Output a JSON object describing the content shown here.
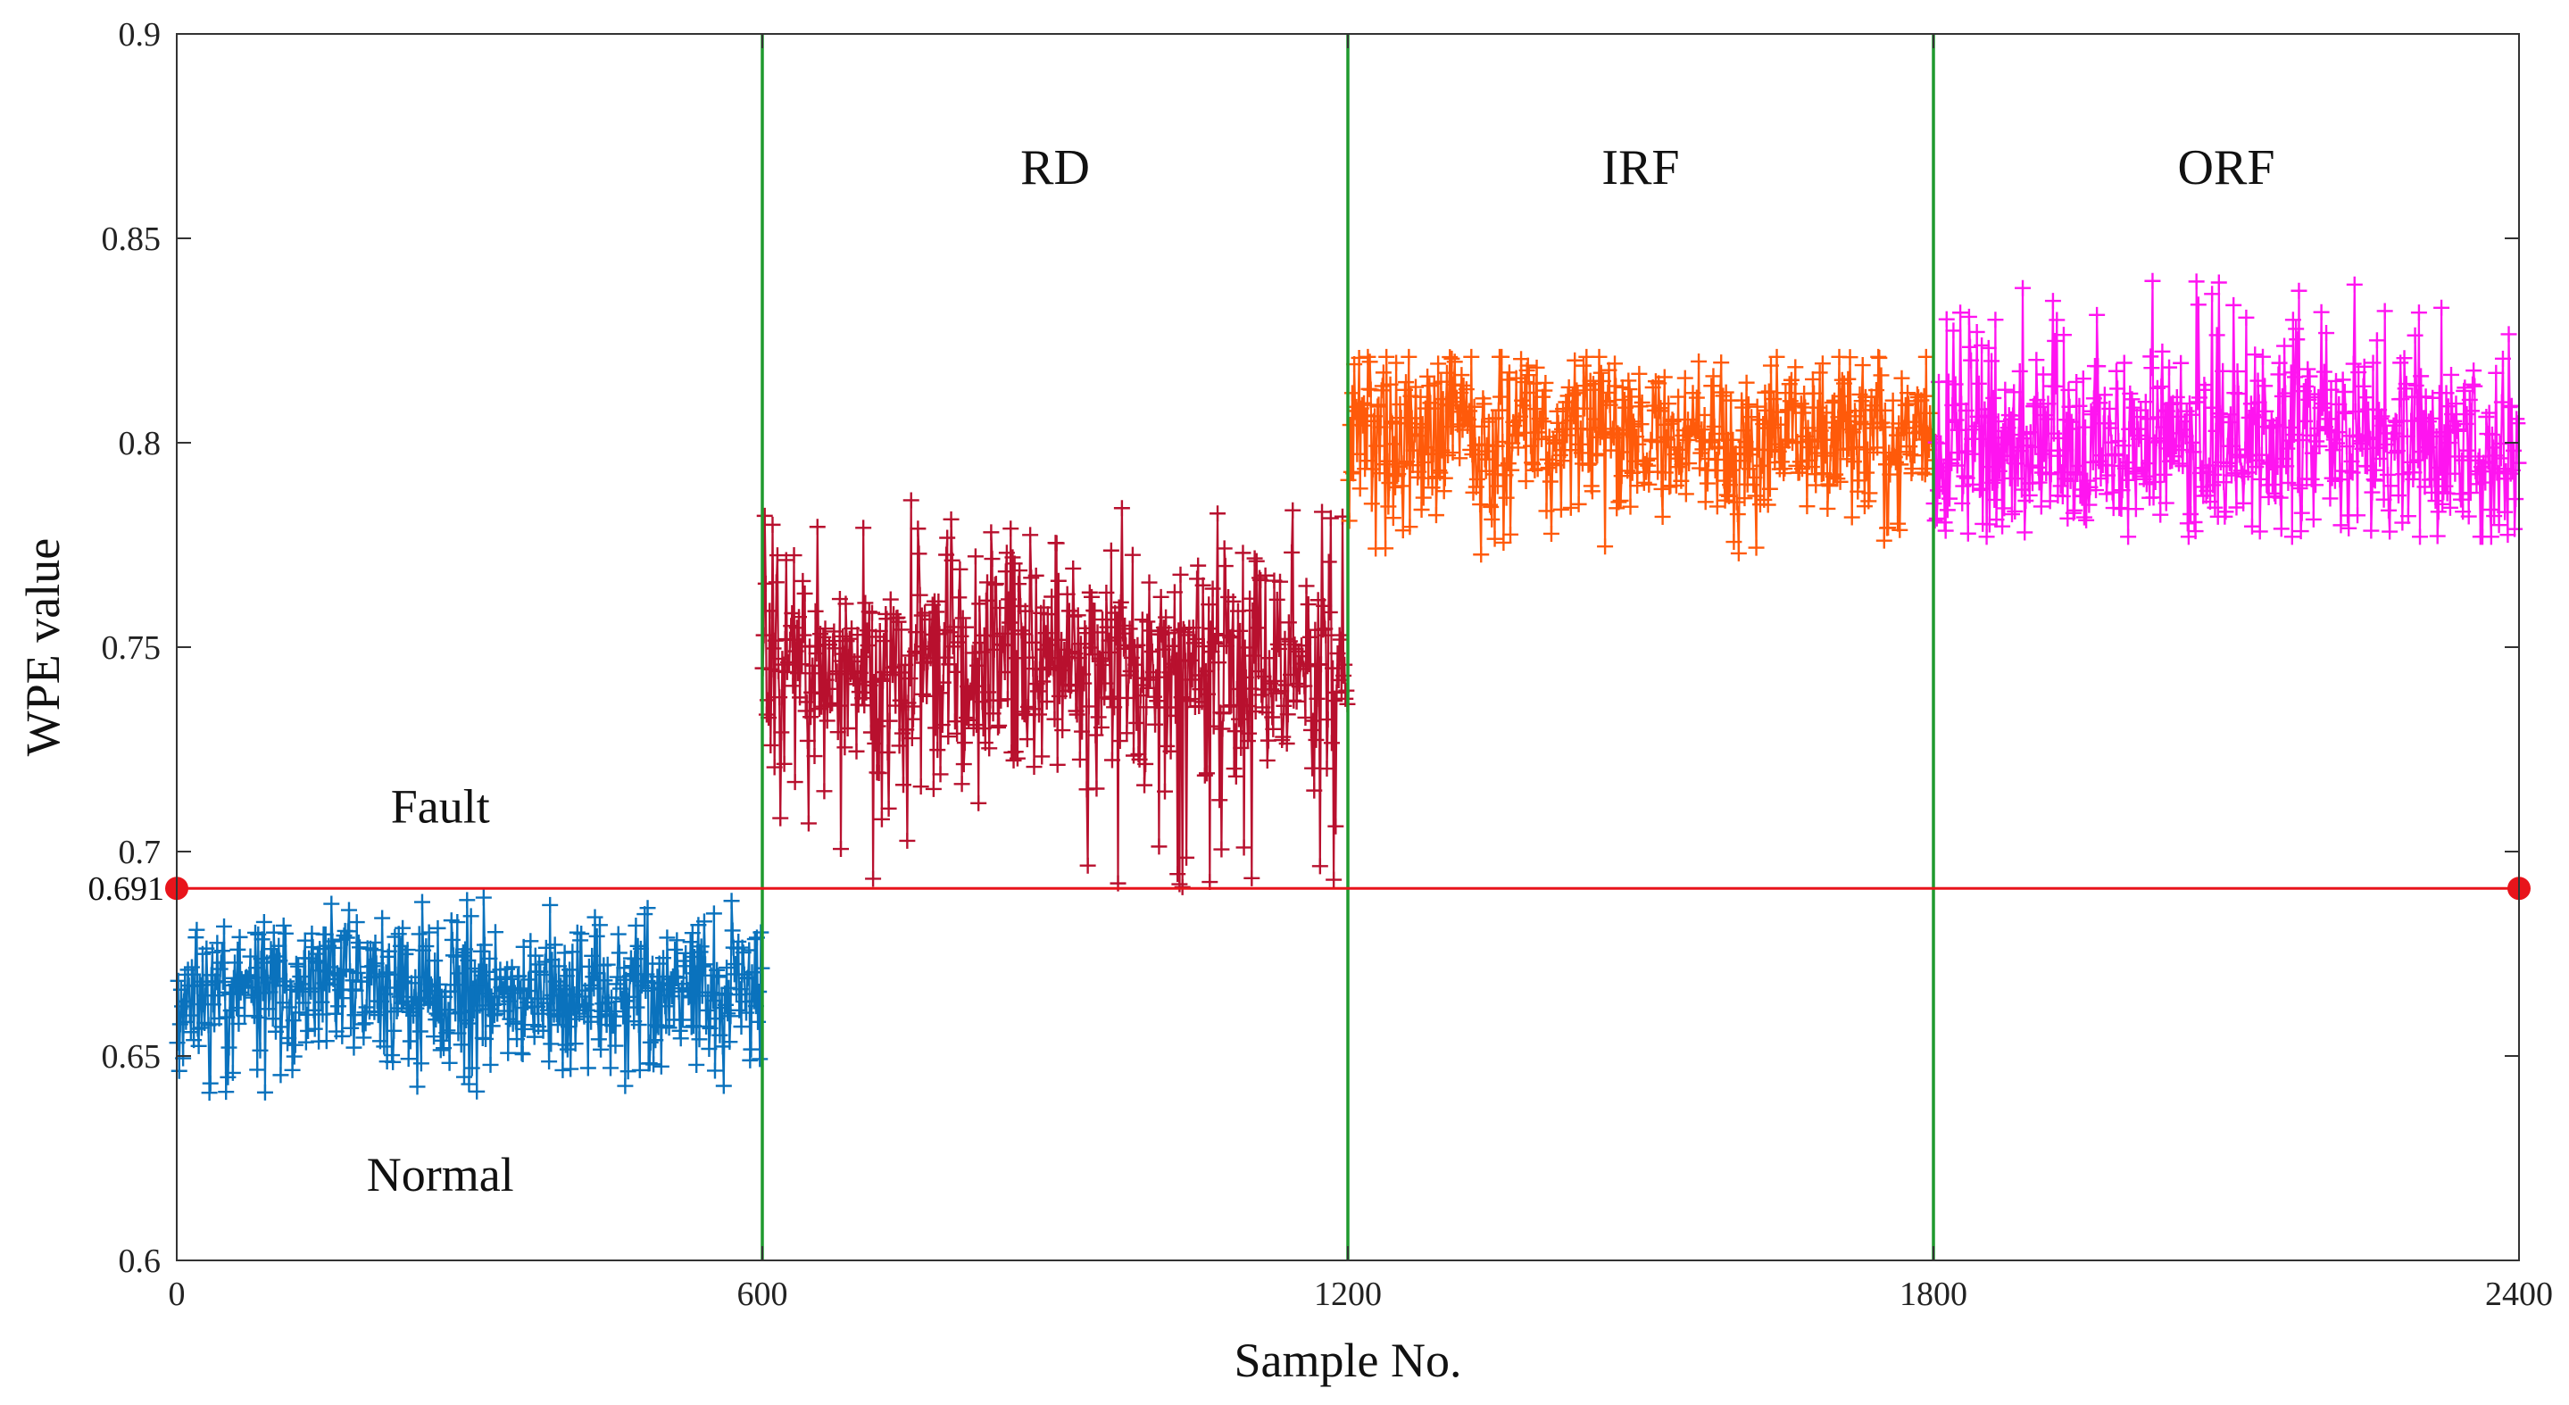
{
  "chart_data": {
    "type": "scatter",
    "title": "",
    "xlabel": "Sample No.",
    "ylabel": "WPE value",
    "xlim": [
      0,
      2400
    ],
    "ylim": [
      0.6,
      0.9
    ],
    "xticks": [
      "0",
      "600",
      "1200",
      "1800",
      "2400"
    ],
    "xtick_values": [
      0,
      600,
      1200,
      1800,
      2400
    ],
    "yticks": [
      "0.6",
      "0.65",
      "0.7",
      "0.75",
      "0.8",
      "0.85",
      "0.9"
    ],
    "ytick_values": [
      0.6,
      0.65,
      0.7,
      0.75,
      0.8,
      0.85,
      0.9
    ],
    "marker": "+",
    "grid": false,
    "threshold": {
      "value": 0.691,
      "label": "0.691",
      "color": "#e8141b"
    },
    "dividers": [
      600,
      1200,
      1800
    ],
    "divider_color": "#1f9a2e",
    "annotations": [
      {
        "text": "Fault",
        "x": 270,
        "y": 0.711
      },
      {
        "text": "Normal",
        "x": 270,
        "y": 0.621
      }
    ],
    "series": [
      {
        "name": "Normal",
        "label": "",
        "color": "#0a72bd",
        "x_range": [
          0,
          600
        ],
        "mean": 0.666,
        "min": 0.641,
        "max": 0.69,
        "spread": 0.008,
        "n": 600,
        "seed": 11
      },
      {
        "name": "RD",
        "label": "RD",
        "color": "#b8102e",
        "x_range": [
          600,
          1200
        ],
        "mean": 0.746,
        "min": 0.69,
        "max": 0.786,
        "spread": 0.012,
        "n": 600,
        "seed": 23
      },
      {
        "name": "IRF",
        "label": "IRF",
        "color": "#ff5a0a",
        "x_range": [
          1200,
          1800
        ],
        "mean": 0.803,
        "min": 0.772,
        "max": 0.821,
        "spread": 0.009,
        "n": 600,
        "seed": 37
      },
      {
        "name": "ORF",
        "label": "ORF",
        "color": "#ff14f0",
        "x_range": [
          1800,
          2400
        ],
        "mean": 0.8,
        "min": 0.777,
        "max": 0.84,
        "spread": 0.011,
        "n": 600,
        "seed": 53
      }
    ]
  }
}
